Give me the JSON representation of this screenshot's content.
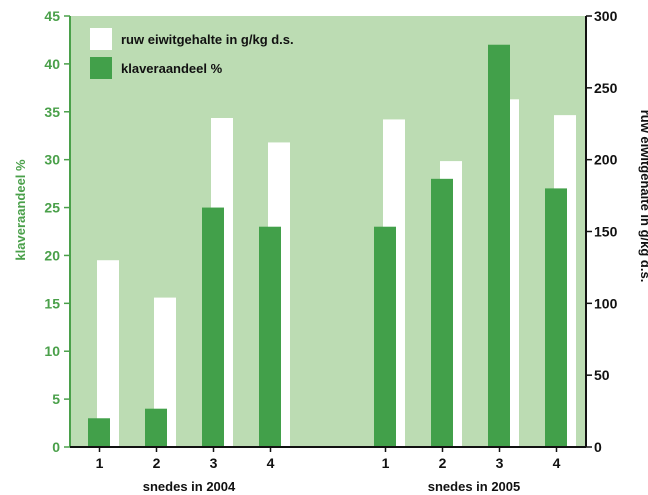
{
  "chart_data": {
    "type": "bar",
    "colors": {
      "plot_background": "#bcdcb3",
      "white_bar": "#ffffff",
      "green_bar": "#42a04a",
      "left_axis": "#4aa04a",
      "right_axis": "#111111"
    },
    "groups": [
      {
        "label": "snedes in 2004",
        "categories": [
          "1",
          "2",
          "3",
          "4"
        ]
      },
      {
        "label": "snedes in 2005",
        "categories": [
          "1",
          "2",
          "3",
          "4"
        ]
      }
    ],
    "series": [
      {
        "name": "ruw eiwitgehalte in g/kg d.s.",
        "axis": "right",
        "values": [
          130,
          104,
          229,
          212,
          228,
          199,
          242,
          231
        ]
      },
      {
        "name": "klaveraandeel %",
        "axis": "left",
        "values": [
          3,
          4,
          25,
          23,
          23,
          28,
          42,
          27
        ]
      }
    ],
    "ylabel_left": "klaveraandeel %",
    "ylabel_right": "ruw eiwitgehalte in g/kg d.s.",
    "ylim_left": [
      0,
      45
    ],
    "yticks_left": [
      0,
      5,
      10,
      15,
      20,
      25,
      30,
      35,
      40,
      45
    ],
    "ylim_right": [
      0,
      300
    ],
    "yticks_right": [
      0,
      50,
      100,
      150,
      200,
      250,
      300
    ],
    "legend_position": "top-left",
    "grid": false
  }
}
